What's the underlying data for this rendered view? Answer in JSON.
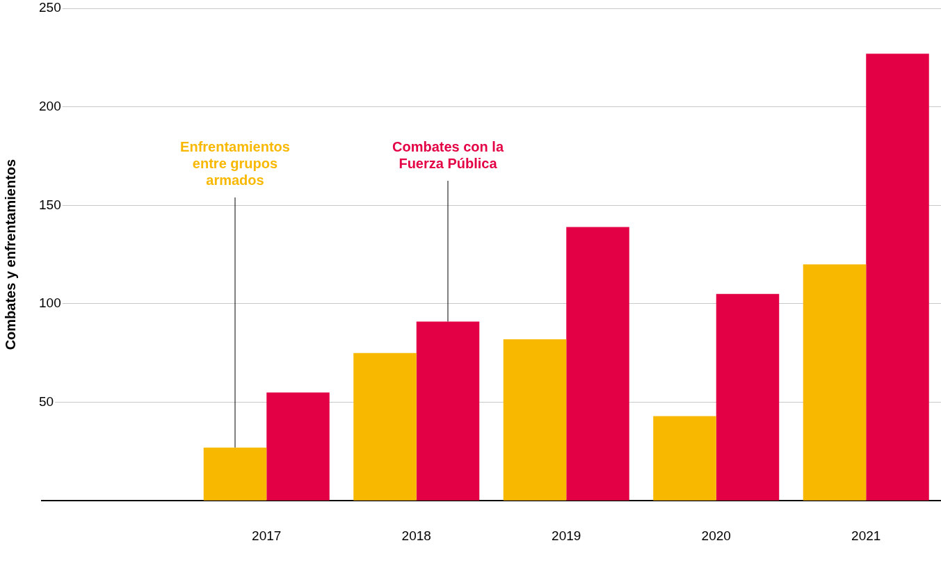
{
  "chart_data": {
    "type": "bar",
    "ylabel": "Combates y enfrentamientos",
    "categories": [
      null,
      "2017",
      "2018",
      "2019",
      "2020",
      "2021"
    ],
    "series": [
      {
        "name": "Enfrentamientos entre grupos armados",
        "color": "#f9b800",
        "values": [
          null,
          27,
          75,
          82,
          43,
          120
        ]
      },
      {
        "name": "Combates con la Fuerza Pública",
        "color": "#e30045",
        "values": [
          null,
          55,
          91,
          139,
          105,
          227
        ]
      }
    ],
    "ylim": [
      0,
      250
    ],
    "yticks": [
      {
        "value": 0,
        "label": null
      },
      50,
      100,
      150,
      200,
      250
    ],
    "grid": "y",
    "legend": false
  }
}
